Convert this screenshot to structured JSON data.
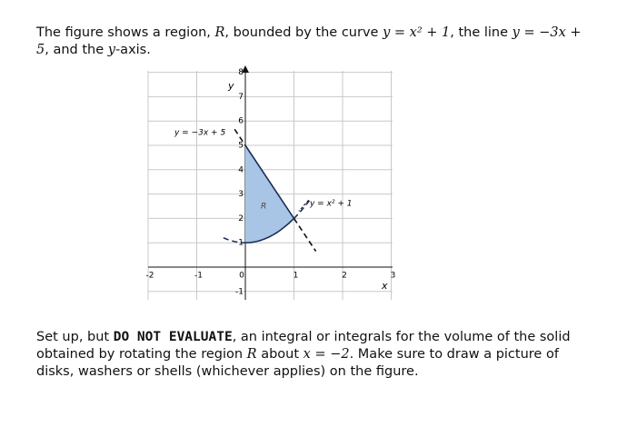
{
  "intro": [
    "The figure shows a region, ",
    "R",
    ", bounded by the curve ",
    "y = x² + 1",
    ", the line ",
    "y = −3x + 5",
    ", and the ",
    "y",
    "-axis."
  ],
  "figure": {
    "x_axis_label": "x",
    "y_axis_label": "y",
    "xticks": [
      -2,
      -1,
      0,
      1,
      2,
      3
    ],
    "yticks": [
      -1,
      1,
      2,
      3,
      4,
      5,
      6,
      7,
      8
    ],
    "region_label": "R",
    "curve_label": "y = x² + 1",
    "line_label": "y = −3x + 5"
  },
  "question": [
    "Set up, but ",
    "DO NOT EVALUATE",
    ", an integral or integrals for the volume of the solid obtained by rotating the region ",
    "R",
    " about ",
    "x = −2",
    ". Make sure to draw a picture of disks, washers or shells (whichever applies) on the figure."
  ]
}
